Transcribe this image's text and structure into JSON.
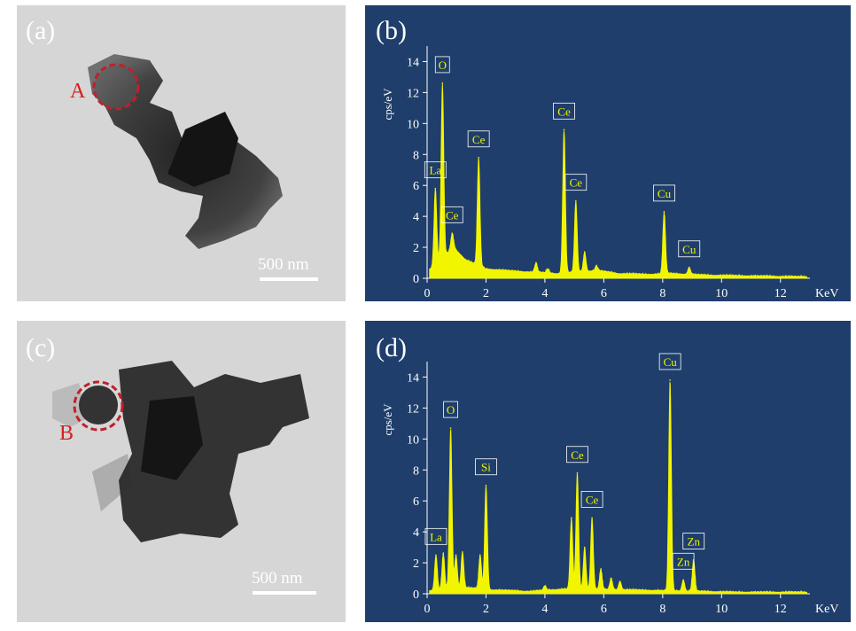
{
  "panels": {
    "a": {
      "label": "(a)",
      "region_label": "A",
      "scale_text": "500 nm"
    },
    "b": {
      "label": "(b)"
    },
    "c": {
      "label": "(c)",
      "region_label": "B",
      "scale_text": "500 nm"
    },
    "d": {
      "label": "(d)"
    }
  },
  "colors": {
    "eds_background": "#1f3e6b",
    "spectrum": "#f2f500",
    "axis": "#ffffff",
    "region_circle": "#c0202a"
  },
  "chart_data": [
    {
      "type": "line",
      "panel": "(b)",
      "xlabel": "KeV",
      "ylabel": "cps/eV",
      "xlim": [
        0,
        13
      ],
      "ylim": [
        0,
        15
      ],
      "xticks": [
        0,
        2,
        4,
        6,
        8,
        10,
        12
      ],
      "yticks": [
        0,
        2,
        4,
        6,
        8,
        10,
        12,
        14
      ],
      "baseline_x": [
        0.1,
        0.9,
        1.3,
        2.0,
        3.0,
        4.0,
        4.4,
        5.8,
        6.5,
        7.5,
        8.3,
        9.5,
        11.0,
        12.5,
        13.0
      ],
      "baseline_y": [
        0.6,
        2.0,
        1.2,
        0.6,
        0.45,
        0.35,
        0.3,
        0.5,
        0.3,
        0.25,
        0.3,
        0.2,
        0.15,
        0.1,
        0.1
      ],
      "peaks": [
        {
          "label": "La",
          "x": 0.28,
          "y": 5.8
        },
        {
          "label": "O",
          "x": 0.52,
          "y": 12.6
        },
        {
          "label": "Ce",
          "x": 0.85,
          "y": 2.9
        },
        {
          "label": "Ce",
          "x": 1.75,
          "y": 7.8
        },
        {
          "label": "",
          "x": 3.7,
          "y": 1.0
        },
        {
          "label": "",
          "x": 4.1,
          "y": 0.6
        },
        {
          "label": "Ce",
          "x": 4.65,
          "y": 9.6
        },
        {
          "label": "Ce",
          "x": 5.05,
          "y": 5.0
        },
        {
          "label": "",
          "x": 5.35,
          "y": 1.7
        },
        {
          "label": "",
          "x": 5.75,
          "y": 0.8
        },
        {
          "label": "Cu",
          "x": 8.05,
          "y": 4.3
        },
        {
          "label": "Cu",
          "x": 8.9,
          "y": 0.7
        }
      ]
    },
    {
      "type": "line",
      "panel": "(d)",
      "xlabel": "KeV",
      "ylabel": "cps/eV",
      "xlim": [
        0,
        13
      ],
      "ylim": [
        0,
        15
      ],
      "xticks": [
        0,
        2,
        4,
        6,
        8,
        10,
        12
      ],
      "yticks": [
        0,
        2,
        4,
        6,
        8,
        10,
        12,
        14
      ],
      "baseline_x": [
        0.1,
        1.3,
        2.2,
        3.5,
        4.6,
        6.8,
        8.0,
        9.4,
        10.5,
        12.0,
        13.0
      ],
      "baseline_y": [
        0.2,
        0.4,
        0.25,
        0.15,
        0.3,
        0.25,
        0.2,
        0.15,
        0.1,
        0.1,
        0.1
      ],
      "peaks": [
        {
          "label": "La",
          "x": 0.3,
          "y": 2.5
        },
        {
          "label": "",
          "x": 0.55,
          "y": 2.6
        },
        {
          "label": "O",
          "x": 0.8,
          "y": 10.7
        },
        {
          "label": "",
          "x": 0.98,
          "y": 2.5
        },
        {
          "label": "",
          "x": 1.2,
          "y": 2.7
        },
        {
          "label": "",
          "x": 1.8,
          "y": 2.5
        },
        {
          "label": "Si",
          "x": 2.0,
          "y": 7.0
        },
        {
          "label": "",
          "x": 4.0,
          "y": 0.5
        },
        {
          "label": "",
          "x": 4.9,
          "y": 4.9
        },
        {
          "label": "Ce",
          "x": 5.1,
          "y": 7.8
        },
        {
          "label": "",
          "x": 5.35,
          "y": 3.0
        },
        {
          "label": "Ce",
          "x": 5.6,
          "y": 4.9
        },
        {
          "label": "",
          "x": 5.9,
          "y": 1.6
        },
        {
          "label": "",
          "x": 6.25,
          "y": 1.0
        },
        {
          "label": "",
          "x": 6.55,
          "y": 0.8
        },
        {
          "label": "Cu",
          "x": 8.25,
          "y": 13.8
        },
        {
          "label": "Zn",
          "x": 8.7,
          "y": 0.9
        },
        {
          "label": "Zn",
          "x": 9.05,
          "y": 2.2
        }
      ]
    }
  ]
}
